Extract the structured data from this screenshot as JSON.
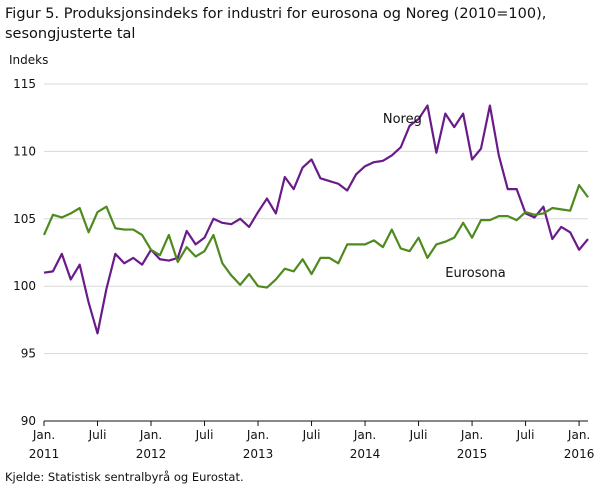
{
  "title": "Figur 5. Produksjonsindeks for industri for eurosona og Noreg (2010=100), sesongjusterte tal",
  "source": "Kjelde: Statistisk sentralbyrå og Eurostat.",
  "chart_data": {
    "type": "line",
    "title": "Figur 5. Produksjonsindeks for industri for eurosona og Noreg (2010=100), sesongjusterte tal",
    "ylabel": "Indeks",
    "xlabel": "",
    "ylim": [
      90,
      115
    ],
    "yticks": [
      90,
      95,
      100,
      105,
      110,
      115
    ],
    "x_tick_labels": [
      {
        "month": "2011-01",
        "line1": "Jan.",
        "line2": "2011"
      },
      {
        "month": "2011-07",
        "line1": "Juli",
        "line2": ""
      },
      {
        "month": "2012-01",
        "line1": "Jan.",
        "line2": "2012"
      },
      {
        "month": "2012-07",
        "line1": "Juli",
        "line2": ""
      },
      {
        "month": "2013-01",
        "line1": "Jan.",
        "line2": "2013"
      },
      {
        "month": "2013-07",
        "line1": "Juli",
        "line2": ""
      },
      {
        "month": "2014-01",
        "line1": "Jan.",
        "line2": "2014"
      },
      {
        "month": "2014-07",
        "line1": "Juli",
        "line2": ""
      },
      {
        "month": "2015-01",
        "line1": "Jan.",
        "line2": "2015"
      },
      {
        "month": "2015-07",
        "line1": "Juli",
        "line2": ""
      },
      {
        "month": "2016-01",
        "line1": "Jan.",
        "line2": "2016"
      }
    ],
    "x": [
      "2011-01",
      "2011-02",
      "2011-03",
      "2011-04",
      "2011-05",
      "2011-06",
      "2011-07",
      "2011-08",
      "2011-09",
      "2011-10",
      "2011-11",
      "2011-12",
      "2012-01",
      "2012-02",
      "2012-03",
      "2012-04",
      "2012-05",
      "2012-06",
      "2012-07",
      "2012-08",
      "2012-09",
      "2012-10",
      "2012-11",
      "2012-12",
      "2013-01",
      "2013-02",
      "2013-03",
      "2013-04",
      "2013-05",
      "2013-06",
      "2013-07",
      "2013-08",
      "2013-09",
      "2013-10",
      "2013-11",
      "2013-12",
      "2014-01",
      "2014-02",
      "2014-03",
      "2014-04",
      "2014-05",
      "2014-06",
      "2014-07",
      "2014-08",
      "2014-09",
      "2014-10",
      "2014-11",
      "2014-12",
      "2015-01",
      "2015-02",
      "2015-03",
      "2015-04",
      "2015-05",
      "2015-06",
      "2015-07",
      "2015-08",
      "2015-09",
      "2015-10",
      "2015-11",
      "2015-12",
      "2016-01",
      "2016-02"
    ],
    "series": [
      {
        "name": "Noreg",
        "color": "#6a1b8a",
        "values": [
          101.0,
          101.1,
          102.4,
          100.5,
          101.6,
          98.8,
          96.5,
          99.8,
          102.4,
          101.7,
          102.1,
          101.6,
          102.7,
          102.0,
          101.9,
          102.1,
          104.1,
          103.1,
          103.6,
          105.0,
          104.7,
          104.6,
          105.0,
          104.4,
          105.5,
          106.5,
          105.4,
          108.1,
          107.2,
          108.8,
          109.4,
          108.0,
          107.8,
          107.6,
          107.1,
          108.3,
          108.9,
          109.2,
          109.3,
          109.7,
          110.3,
          111.9,
          112.4,
          113.4,
          109.9,
          112.8,
          111.8,
          112.8,
          109.4,
          110.2,
          113.4,
          109.7,
          107.2,
          107.2,
          105.4,
          105.1,
          105.9,
          103.5,
          104.4,
          104.0,
          102.7,
          103.5
        ]
      },
      {
        "name": "Eurosona",
        "color": "#4e8a1e",
        "values": [
          103.8,
          105.3,
          105.1,
          105.4,
          105.8,
          104.0,
          105.5,
          105.9,
          104.3,
          104.2,
          104.2,
          103.8,
          102.7,
          102.3,
          103.8,
          101.8,
          102.9,
          102.2,
          102.6,
          103.8,
          101.7,
          100.8,
          100.1,
          100.9,
          100.0,
          99.9,
          100.5,
          101.3,
          101.1,
          102.0,
          100.9,
          102.1,
          102.1,
          101.7,
          103.1,
          103.1,
          103.1,
          103.4,
          102.9,
          104.2,
          102.8,
          102.6,
          103.6,
          102.1,
          103.1,
          103.3,
          103.6,
          104.7,
          103.6,
          104.9,
          104.9,
          105.2,
          105.2,
          104.9,
          105.5,
          105.3,
          105.4,
          105.8,
          105.7,
          105.6,
          107.5,
          106.6
        ]
      }
    ],
    "annotations": [
      {
        "text": "Noreg",
        "series": "Noreg"
      },
      {
        "text": "Eurosona",
        "series": "Eurosona"
      }
    ]
  }
}
